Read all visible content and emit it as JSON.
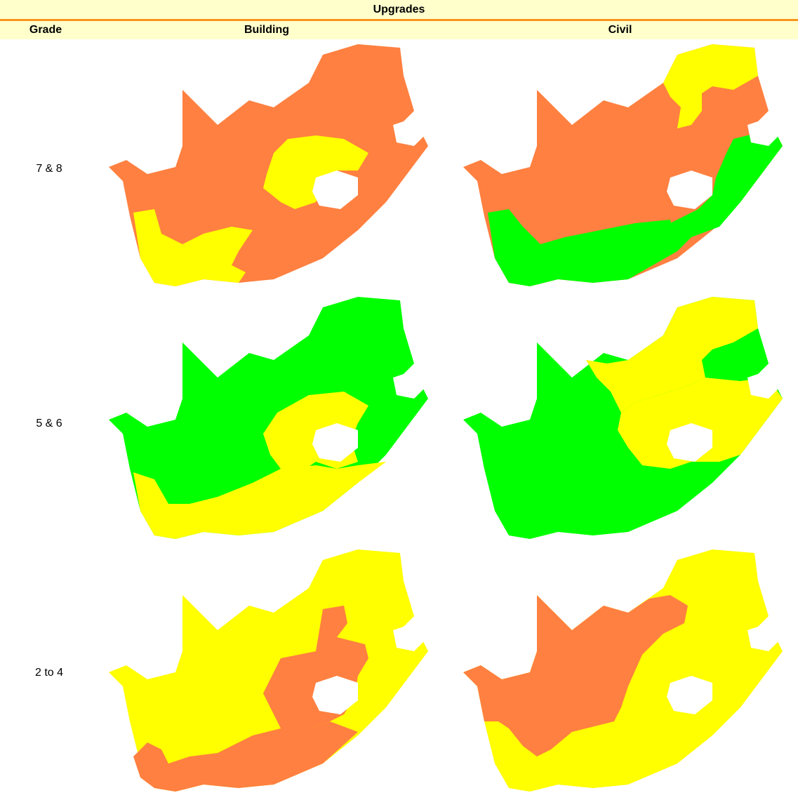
{
  "title": "Upgrades",
  "headers": {
    "grade": "Grade",
    "building": "Building",
    "civil": "Civil"
  },
  "legend_colors": {
    "low": "#00ff00",
    "medium": "#ffff00",
    "high": "#ff8040"
  },
  "rows": [
    {
      "grade": "7 & 8",
      "building": {
        "base": "#ff8040",
        "regions": {
          "free_state": "#ffff00",
          "western_cape": "#ffff00"
        }
      },
      "civil": {
        "base": "#ff8040",
        "regions": {
          "north": "#ffff00",
          "east_coast": "#00ff00",
          "south": "#00ff00"
        }
      }
    },
    {
      "grade": "5 & 6",
      "building": {
        "base": "#00ff00",
        "regions": {
          "central": "#ffff00",
          "south": "#ffff00"
        }
      },
      "civil": {
        "base": "#00ff00",
        "regions": {
          "north": "#ffff00",
          "central_east": "#ffff00",
          "northeast": "#00ff00"
        }
      }
    },
    {
      "grade": "2 to 4",
      "building": {
        "base": "#ffff00",
        "regions": {
          "central": "#ff8040",
          "south": "#ff8040"
        }
      },
      "civil": {
        "base": "#ffff00",
        "regions": {
          "west_central": "#ff8040",
          "south": "#ffff00"
        }
      }
    }
  ]
}
